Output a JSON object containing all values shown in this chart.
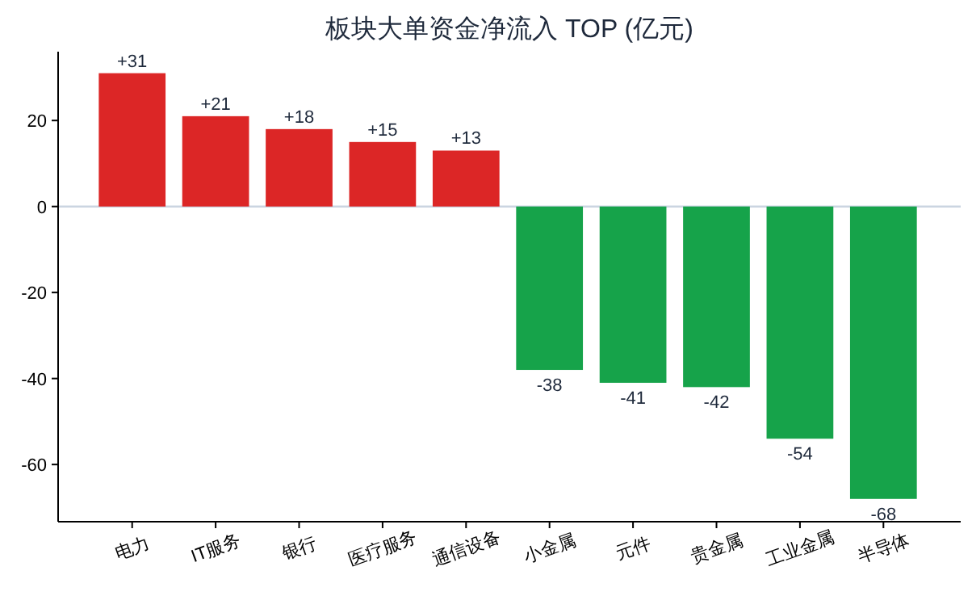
{
  "chart_data": {
    "type": "bar",
    "title": "板块大单资金净流入 TOP (亿元)",
    "categories": [
      "电力",
      "IT服务",
      "银行",
      "医疗服务",
      "通信设备",
      "小金属",
      "元件",
      "贵金属",
      "工业金属",
      "半导体"
    ],
    "values": [
      31,
      21,
      18,
      15,
      13,
      -38,
      -41,
      -42,
      -54,
      -68
    ],
    "colors": [
      "#dc2626",
      "#dc2626",
      "#dc2626",
      "#dc2626",
      "#dc2626",
      "#16a34a",
      "#16a34a",
      "#16a34a",
      "#16a34a",
      "#16a34a"
    ],
    "value_labels": [
      "+31",
      "+21",
      "+18",
      "+15",
      "+13",
      "-38",
      "-41",
      "-42",
      "-54",
      "-68"
    ],
    "ylim": [
      -73.3,
      36
    ],
    "yticks": [
      -60,
      -40,
      -20,
      0,
      20
    ],
    "ref_lines": [
      {
        "axis": "y",
        "value": 0,
        "color": "#cbd5e1"
      }
    ],
    "grid": false
  }
}
